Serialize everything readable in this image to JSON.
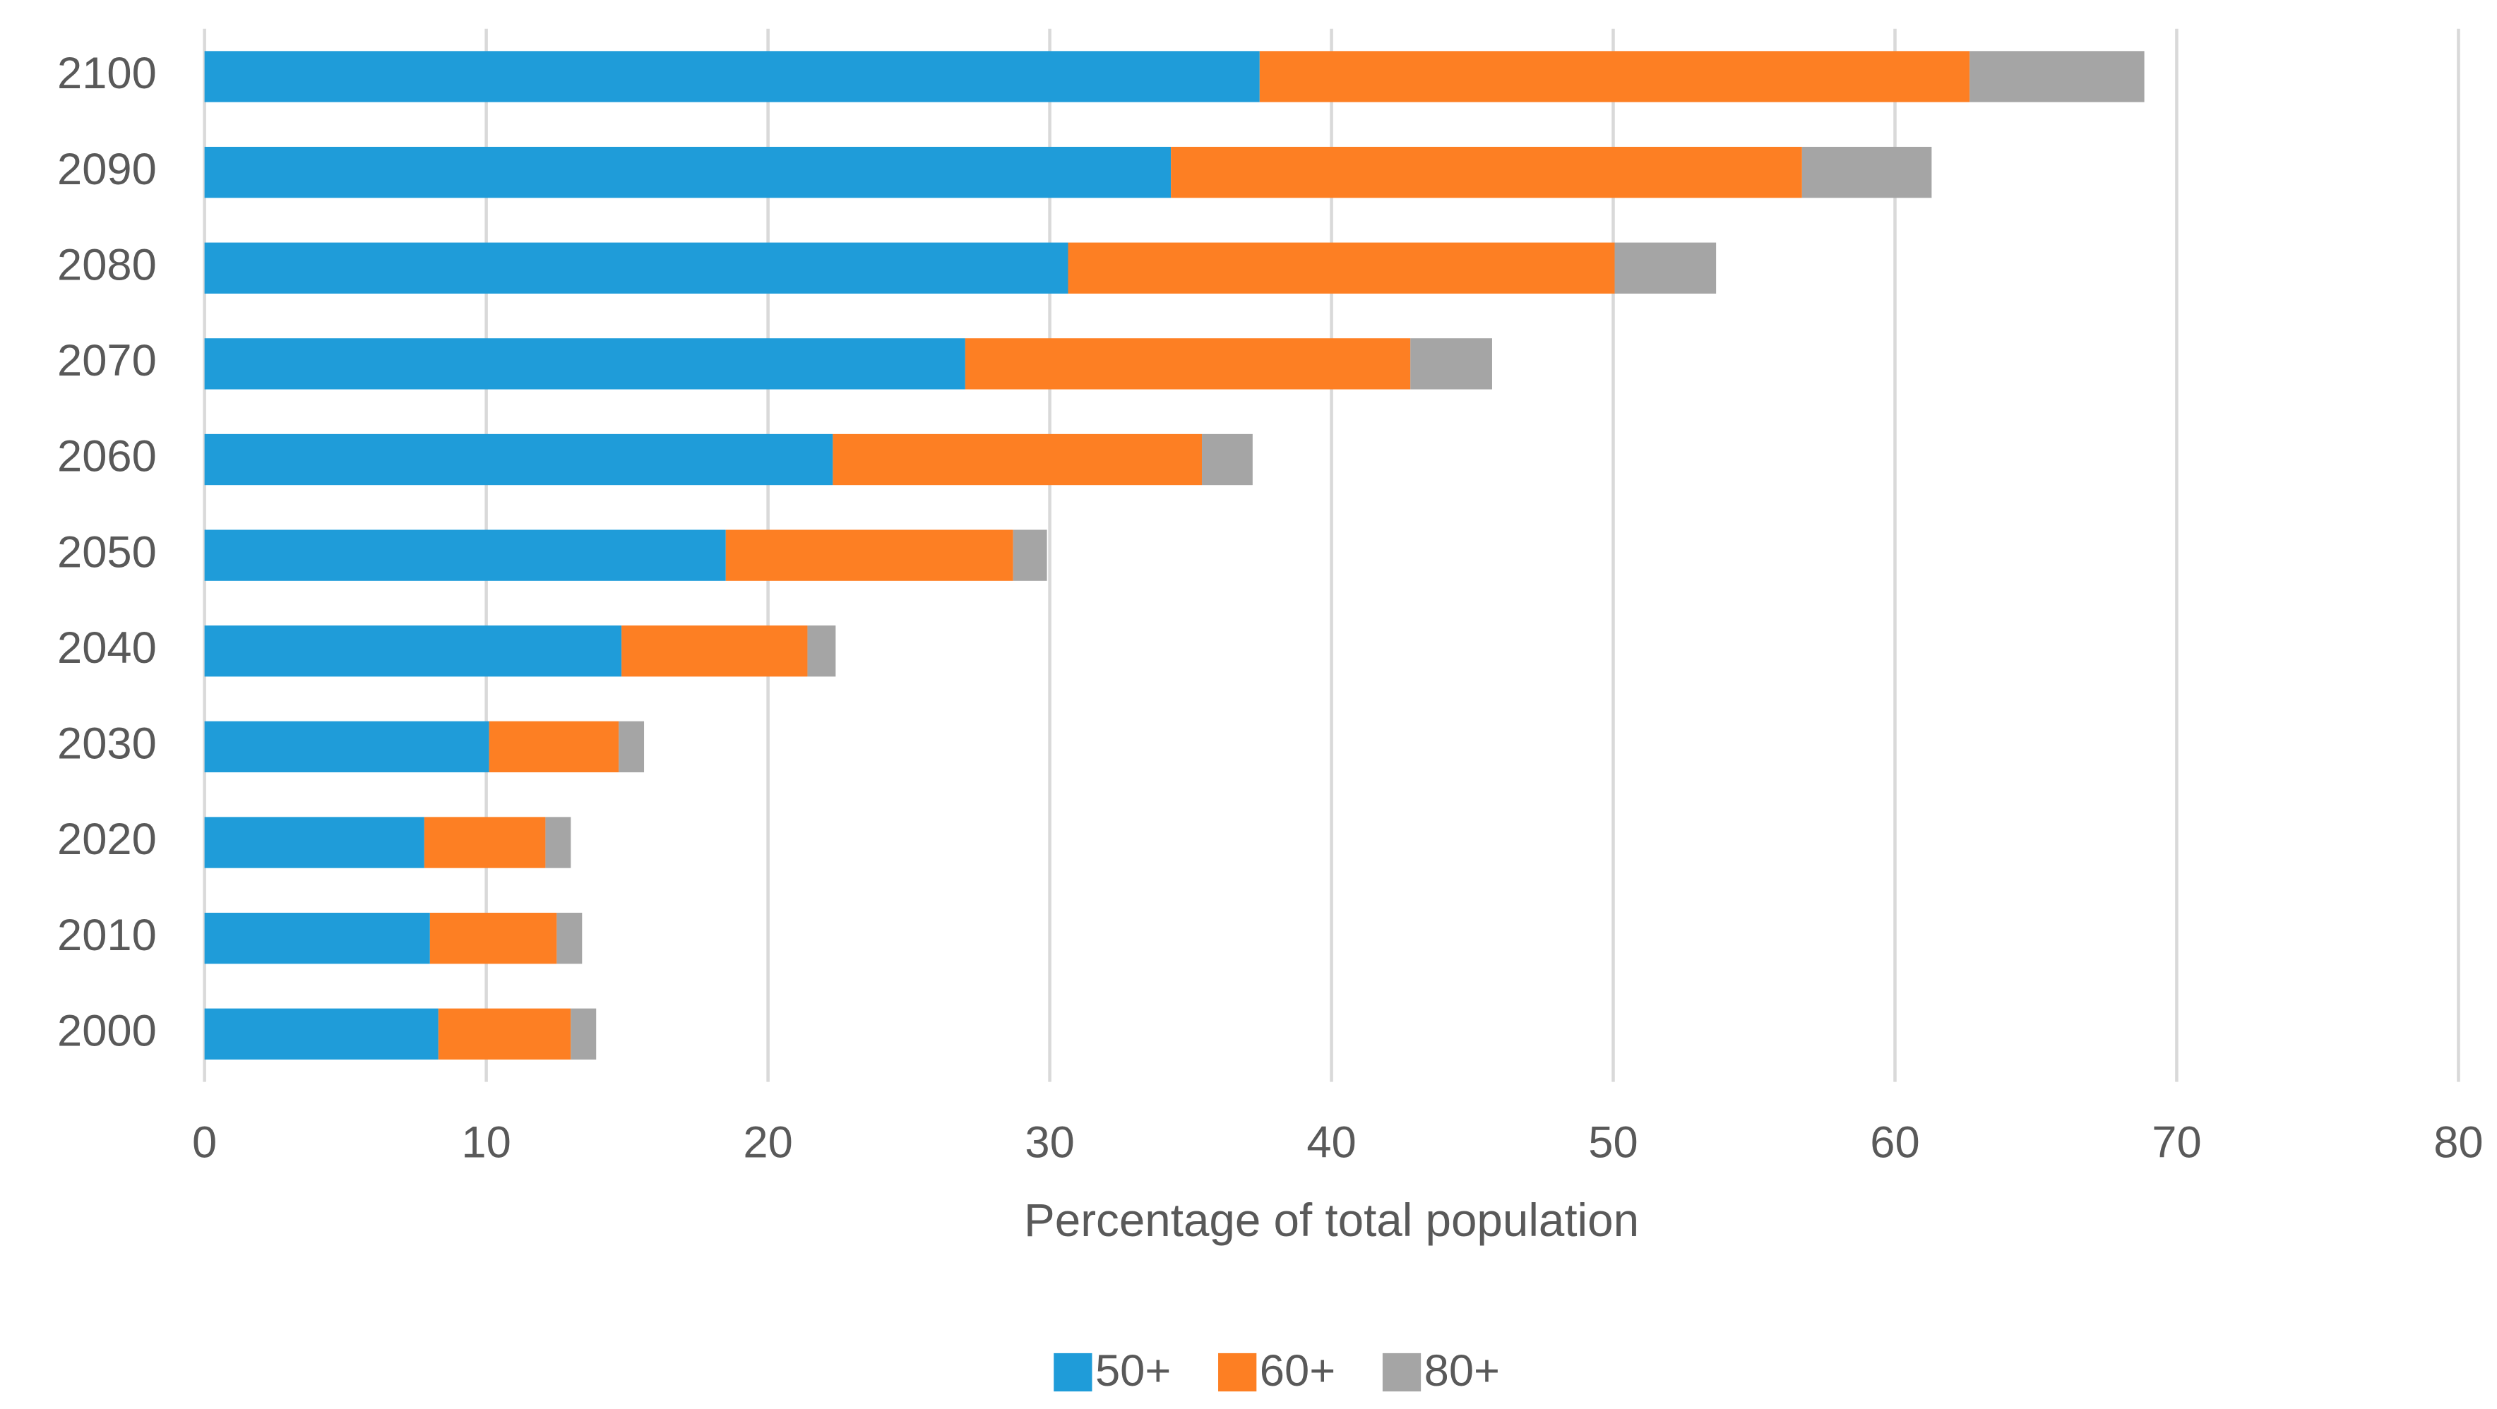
{
  "chart_data": {
    "type": "stacked-bar-horizontal",
    "x_label": "Percentage of total population",
    "categories": [
      "2000",
      "2010",
      "2020",
      "2030",
      "2040",
      "2050",
      "2060",
      "2070",
      "2080",
      "2090",
      "2100"
    ],
    "series": [
      {
        "name": "50+",
        "color": "#1f9cd9",
        "values": [
          8.3,
          8.0,
          7.8,
          10.1,
          14.8,
          18.5,
          22.3,
          27.0,
          30.65,
          34.3,
          37.45
        ]
      },
      {
        "name": "60+",
        "color": "#fd7f23",
        "values": [
          4.7,
          4.5,
          4.3,
          4.6,
          6.6,
          10.2,
          13.1,
          15.8,
          19.4,
          22.4,
          25.2
        ]
      },
      {
        "name": "80+",
        "color": "#a5a5a5",
        "values": [
          0.9,
          0.9,
          0.9,
          0.9,
          1.0,
          1.2,
          1.8,
          2.9,
          3.6,
          4.6,
          6.2
        ]
      }
    ],
    "xlim": [
      0,
      80
    ],
    "xticks": [
      0,
      10,
      20,
      30,
      40,
      50,
      60,
      70,
      80
    ],
    "grid": true,
    "legend": "bottom"
  }
}
